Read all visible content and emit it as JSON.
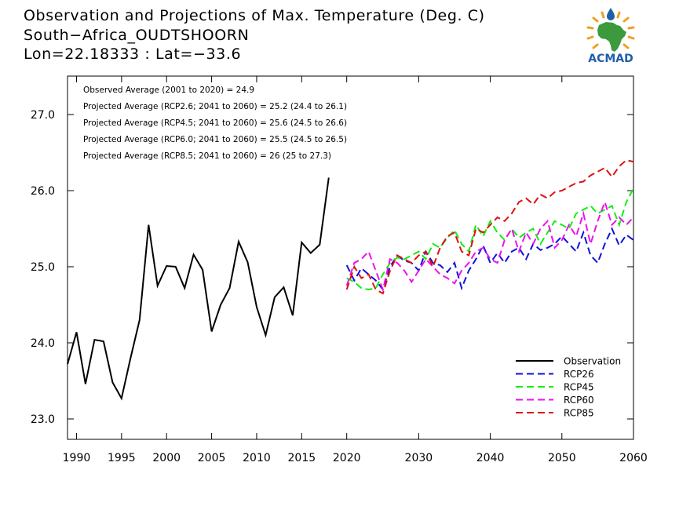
{
  "header": {
    "title": "Observation and Projections of Max. Temperature (Deg. C)",
    "location": "South−Africa_OUDTSHOORN",
    "coords": "Lon=22.18333 : Lat=−33.6"
  },
  "logo": {
    "text": "ACMAD",
    "icon": "africa-map-icon"
  },
  "colors": {
    "observation": "#000000",
    "rcp26": "#1010dd",
    "rcp45": "#11ee11",
    "rcp60": "#ee11ee",
    "rcp85": "#dd1111",
    "logo_green": "#3c9a3c",
    "logo_blue": "#1f5fa8",
    "logo_orange": "#f0a020"
  },
  "chart_data": {
    "type": "line",
    "xlim": [
      1989,
      2060
    ],
    "ylim": [
      22.7,
      27.5
    ],
    "x_ticks": [
      1990,
      1995,
      2000,
      2005,
      2010,
      2015,
      2020,
      2030,
      2040,
      2050,
      2060
    ],
    "y_ticks": [
      "23.0",
      "24.0",
      "25.0",
      "26.0",
      "27.0"
    ],
    "annotations": [
      "Observed Average (2001 to 2020) = 24.9",
      "Projected Average (RCP2.6; 2041 to 2060) = 25.2 (24.4 to 26.1)",
      "Projected Average (RCP4.5; 2041 to 2060) = 25.6 (24.5 to 26.6)",
      "Projected Average (RCP6.0; 2041 to 2060) = 25.5 (24.5 to 26.5)",
      "Projected Average (RCP8.5; 2041 to 2060) = 26 (25 to 27.3)"
    ],
    "legend_position": "bottom-right",
    "series": [
      {
        "name": "Observation",
        "dash": "solid",
        "x_start": 1989,
        "values": [
          23.72,
          24.14,
          23.46,
          24.04,
          24.02,
          23.48,
          23.27,
          23.8,
          24.3,
          25.55,
          24.75,
          25.01,
          25.0,
          24.72,
          25.16,
          24.96,
          24.15,
          24.5,
          24.72,
          25.33,
          25.06,
          24.47,
          24.1,
          24.6,
          24.73,
          24.36,
          25.32,
          25.18,
          25.29,
          26.17
        ]
      },
      {
        "name": "RCP26",
        "dash": "dashed",
        "x_start": 2020,
        "values": [
          25.02,
          24.82,
          24.98,
          24.9,
          24.82,
          24.7,
          25.0,
          25.15,
          25.08,
          25.05,
          24.95,
          25.2,
          25.05,
          25.02,
          24.93,
          25.05,
          24.72,
          24.95,
          25.1,
          25.28,
          25.05,
          25.18,
          25.05,
          25.2,
          25.25,
          25.1,
          25.3,
          25.22,
          25.25,
          25.3,
          25.4,
          25.3,
          25.2,
          25.45,
          25.15,
          25.05,
          25.3,
          25.5,
          25.28,
          25.42,
          25.35
        ]
      },
      {
        "name": "RCP45",
        "dash": "dashed",
        "x_start": 2020,
        "values": [
          24.85,
          24.8,
          24.72,
          24.7,
          24.72,
          24.9,
          25.05,
          25.12,
          25.1,
          25.15,
          25.2,
          25.1,
          25.3,
          25.25,
          25.38,
          25.48,
          25.3,
          25.2,
          25.55,
          25.4,
          25.6,
          25.45,
          25.35,
          25.5,
          25.38,
          25.45,
          25.5,
          25.3,
          25.45,
          25.6,
          25.55,
          25.5,
          25.7,
          25.75,
          25.8,
          25.7,
          25.75,
          25.8,
          25.55,
          25.85,
          26.03
        ]
      },
      {
        "name": "RCP60",
        "dash": "dashed",
        "x_start": 2020,
        "values": [
          24.75,
          25.05,
          25.1,
          25.2,
          24.95,
          24.7,
          25.1,
          25.05,
          24.95,
          24.8,
          24.95,
          25.1,
          25.0,
          24.9,
          24.85,
          24.78,
          24.95,
          25.05,
          25.2,
          25.25,
          25.1,
          25.05,
          25.35,
          25.5,
          25.2,
          25.45,
          25.3,
          25.5,
          25.6,
          25.25,
          25.35,
          25.55,
          25.4,
          25.7,
          25.3,
          25.6,
          25.85,
          25.55,
          25.65,
          25.55,
          25.65
        ]
      },
      {
        "name": "RCP85",
        "dash": "dashed",
        "x_start": 2020,
        "values": [
          24.7,
          25.0,
          24.85,
          24.9,
          24.7,
          24.65,
          24.95,
          25.15,
          25.1,
          25.05,
          25.15,
          25.2,
          25.0,
          25.25,
          25.4,
          25.45,
          25.2,
          25.15,
          25.5,
          25.45,
          25.55,
          25.65,
          25.6,
          25.7,
          25.85,
          25.9,
          25.82,
          25.95,
          25.9,
          25.98,
          26.0,
          26.05,
          26.1,
          26.12,
          26.2,
          26.25,
          26.3,
          26.18,
          26.32,
          26.4,
          26.38
        ]
      }
    ]
  }
}
